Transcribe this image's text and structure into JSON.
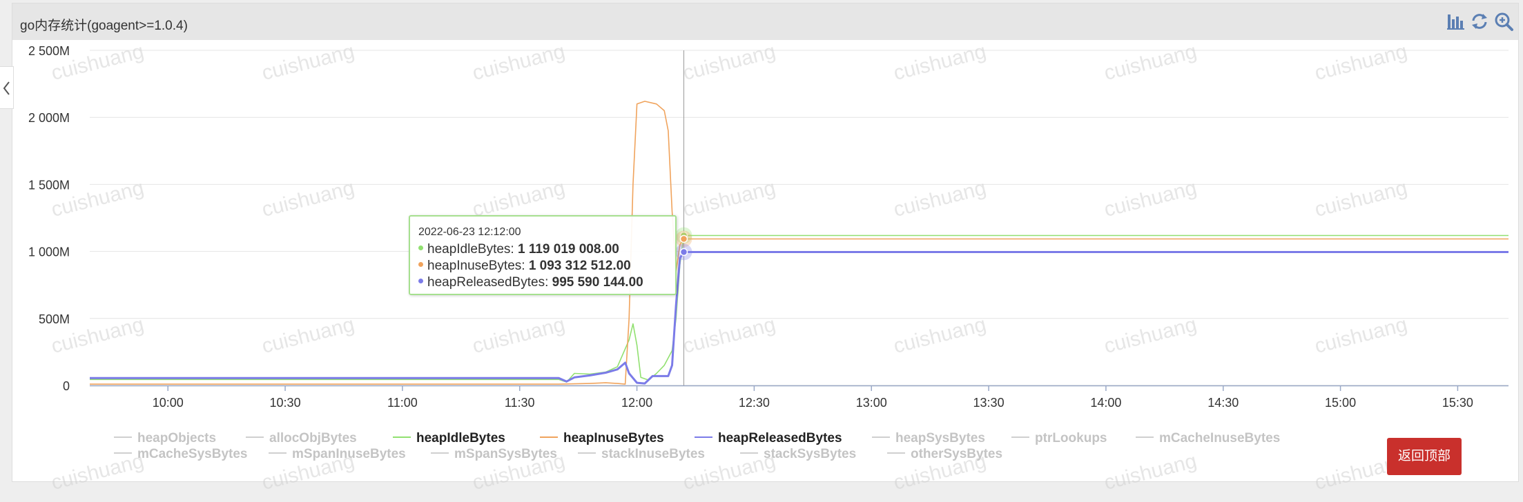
{
  "panel": {
    "title": "go内存统计(goagent>=1.0.4)",
    "toolbar": {
      "icons": [
        "bar-chart-icon",
        "refresh-icon",
        "zoom-in-icon"
      ]
    }
  },
  "watermark_text": "cuishuang",
  "back_to_top_label": "返回顶部",
  "tooltip": {
    "date": "2022-06-23 12:12:00",
    "rows": [
      {
        "name": "heapIdleBytes",
        "value": "1 119 019 008.00",
        "color": "#91e070"
      },
      {
        "name": "heapInuseBytes",
        "value": "1 093 312 512.00",
        "color": "#f0a35c"
      },
      {
        "name": "heapReleasedBytes",
        "value": "995 590 144.00",
        "color": "#7b7be8"
      }
    ]
  },
  "chart_data": {
    "type": "line",
    "title": "",
    "xlabel": "",
    "ylabel": "",
    "x_ticks": [
      "10:00",
      "10:30",
      "11:00",
      "11:30",
      "12:00",
      "12:30",
      "13:00",
      "13:30",
      "14:00",
      "14:30",
      "15:00",
      "15:30"
    ],
    "y_ticks": [
      "0",
      "500M",
      "1 000M",
      "1 500M",
      "2 000M",
      "2 500M"
    ],
    "ylim": [
      0,
      2500000000
    ],
    "xlim": [
      "09:40",
      "15:43"
    ],
    "grid": true,
    "hover_time": "12:12",
    "legend_position": "bottom",
    "legend": [
      {
        "name": "heapObjects",
        "active": false
      },
      {
        "name": "allocObjBytes",
        "active": false
      },
      {
        "name": "heapIdleBytes",
        "active": true,
        "color": "#91e070"
      },
      {
        "name": "heapInuseBytes",
        "active": true,
        "color": "#f0a35c"
      },
      {
        "name": "heapReleasedBytes",
        "active": true,
        "color": "#7b7be8"
      },
      {
        "name": "heapSysBytes",
        "active": false
      },
      {
        "name": "ptrLookups",
        "active": false
      },
      {
        "name": "mCacheInuseBytes",
        "active": false
      },
      {
        "name": "mCacheSysBytes",
        "active": false
      },
      {
        "name": "mSpanInuseBytes",
        "active": false
      },
      {
        "name": "mSpanSysBytes",
        "active": false
      },
      {
        "name": "stackInuseBytes",
        "active": false
      },
      {
        "name": "stackSysBytes",
        "active": false
      },
      {
        "name": "otherSysBytes",
        "active": false
      }
    ],
    "series": [
      {
        "name": "heapIdleBytes",
        "color": "#91e070",
        "points": [
          [
            "09:40",
            45000000
          ],
          [
            "11:40",
            45000000
          ],
          [
            "11:42",
            25000000
          ],
          [
            "11:44",
            90000000
          ],
          [
            "11:48",
            85000000
          ],
          [
            "11:52",
            100000000
          ],
          [
            "11:55",
            140000000
          ],
          [
            "11:58",
            340000000
          ],
          [
            "11:59",
            460000000
          ],
          [
            "12:00",
            300000000
          ],
          [
            "12:01",
            60000000
          ],
          [
            "12:03",
            40000000
          ],
          [
            "12:05",
            90000000
          ],
          [
            "12:07",
            150000000
          ],
          [
            "12:09",
            260000000
          ],
          [
            "12:10",
            500000000
          ],
          [
            "12:11",
            900000000
          ],
          [
            "12:12",
            1119019008
          ],
          [
            "15:43",
            1119019008
          ]
        ]
      },
      {
        "name": "heapInuseBytes",
        "color": "#f0a35c",
        "points": [
          [
            "09:40",
            10000000
          ],
          [
            "11:40",
            10000000
          ],
          [
            "11:48",
            15000000
          ],
          [
            "11:52",
            20000000
          ],
          [
            "11:55",
            15000000
          ],
          [
            "11:57",
            10000000
          ],
          [
            "11:58",
            500000000
          ],
          [
            "11:59",
            1500000000
          ],
          [
            "12:00",
            2100000000
          ],
          [
            "12:02",
            2120000000
          ],
          [
            "12:05",
            2100000000
          ],
          [
            "12:07",
            2050000000
          ],
          [
            "12:08",
            1900000000
          ],
          [
            "12:09",
            1300000000
          ],
          [
            "12:10",
            850000000
          ],
          [
            "12:11",
            1050000000
          ],
          [
            "12:12",
            1093312512
          ],
          [
            "15:43",
            1093312512
          ]
        ]
      },
      {
        "name": "heapReleasedBytes",
        "color": "#7b7be8",
        "points": [
          [
            "09:40",
            55000000
          ],
          [
            "11:40",
            55000000
          ],
          [
            "11:42",
            30000000
          ],
          [
            "11:44",
            60000000
          ],
          [
            "11:48",
            75000000
          ],
          [
            "11:52",
            95000000
          ],
          [
            "11:55",
            120000000
          ],
          [
            "11:57",
            170000000
          ],
          [
            "11:58",
            90000000
          ],
          [
            "12:00",
            20000000
          ],
          [
            "12:02",
            15000000
          ],
          [
            "12:04",
            70000000
          ],
          [
            "12:08",
            70000000
          ],
          [
            "12:09",
            150000000
          ],
          [
            "12:10",
            600000000
          ],
          [
            "12:11",
            950000000
          ],
          [
            "12:12",
            995590144
          ],
          [
            "15:43",
            995590144
          ]
        ]
      }
    ]
  }
}
